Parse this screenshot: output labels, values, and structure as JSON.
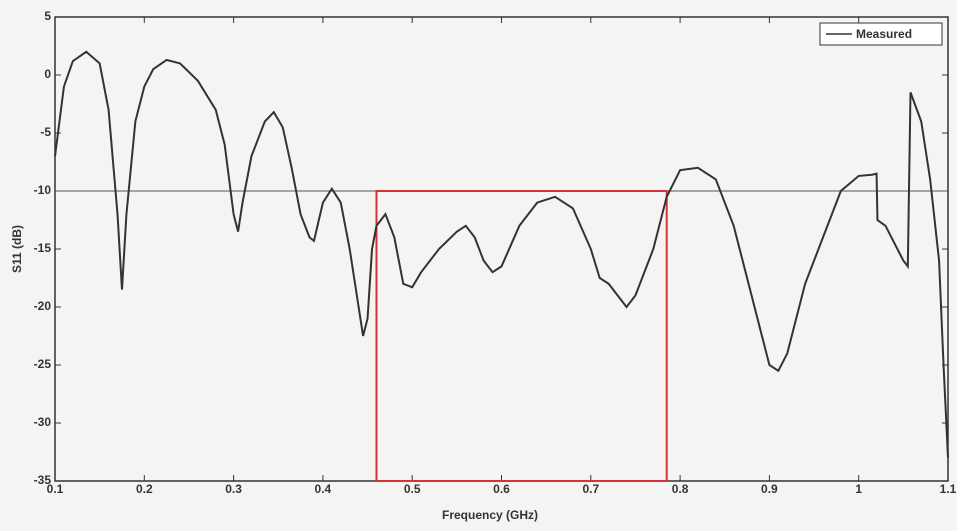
{
  "chart_data": {
    "type": "line",
    "x_label": "Frequency (GHz)",
    "y_label": "S11 (dB)",
    "x": [
      0.1,
      0.11,
      0.12,
      0.135,
      0.15,
      0.16,
      0.17,
      0.175,
      0.18,
      0.19,
      0.2,
      0.21,
      0.225,
      0.24,
      0.26,
      0.28,
      0.29,
      0.3,
      0.305,
      0.31,
      0.32,
      0.335,
      0.345,
      0.355,
      0.365,
      0.375,
      0.385,
      0.39,
      0.4,
      0.41,
      0.42,
      0.43,
      0.44,
      0.445,
      0.45,
      0.455,
      0.46,
      0.47,
      0.48,
      0.49,
      0.5,
      0.51,
      0.53,
      0.55,
      0.56,
      0.57,
      0.58,
      0.59,
      0.6,
      0.62,
      0.64,
      0.66,
      0.68,
      0.7,
      0.71,
      0.72,
      0.73,
      0.74,
      0.75,
      0.77,
      0.785,
      0.8,
      0.82,
      0.84,
      0.86,
      0.88,
      0.9,
      0.91,
      0.92,
      0.94,
      0.96,
      0.98,
      1.0,
      1.015,
      1.02,
      1.021,
      1.03,
      1.05,
      1.055,
      1.058,
      1.07,
      1.08,
      1.09,
      1.095,
      1.1
    ],
    "series": [
      {
        "name": "Measured",
        "color": "#333333",
        "values": [
          -7,
          -1,
          1.2,
          2,
          1,
          -3,
          -12,
          -18.5,
          -12,
          -4,
          -1,
          0.5,
          1.3,
          1,
          -0.5,
          -3,
          -6,
          -12,
          -13.5,
          -11,
          -7,
          -4,
          -3.2,
          -4.5,
          -8,
          -12,
          -14,
          -14.3,
          -11,
          -9.8,
          -11,
          -15,
          -20,
          -22.5,
          -21,
          -15,
          -13,
          -12,
          -14,
          -18,
          -18.3,
          -17,
          -15,
          -13.5,
          -13,
          -14,
          -16,
          -17,
          -16.5,
          -13,
          -11,
          -10.5,
          -11.5,
          -15,
          -17.5,
          -18,
          -19,
          -20,
          -19,
          -15,
          -10.5,
          -8.2,
          -8,
          -9,
          -13,
          -19,
          -25,
          -25.5,
          -24,
          -18,
          -14,
          -10,
          -8.7,
          -8.6,
          -8.5,
          -12.5,
          -13,
          -16,
          -16.5,
          -1.5,
          -4,
          -9,
          -16,
          -25,
          -33
        ]
      }
    ],
    "reference_line": -10,
    "highlight_box": {
      "x": [
        0.46,
        0.785
      ],
      "y": [
        -35,
        -10
      ],
      "color": "#d9313a"
    },
    "xlim": [
      0.1,
      1.1
    ],
    "ylim": [
      -35,
      5
    ],
    "xticks": [
      0.1,
      0.2,
      0.3,
      0.4,
      0.5,
      0.6,
      0.7,
      0.8,
      0.9,
      1,
      1.1
    ],
    "yticks": [
      5,
      0,
      -5,
      -10,
      -15,
      -20,
      -25,
      -30,
      -35
    ],
    "legend": "top-right"
  }
}
